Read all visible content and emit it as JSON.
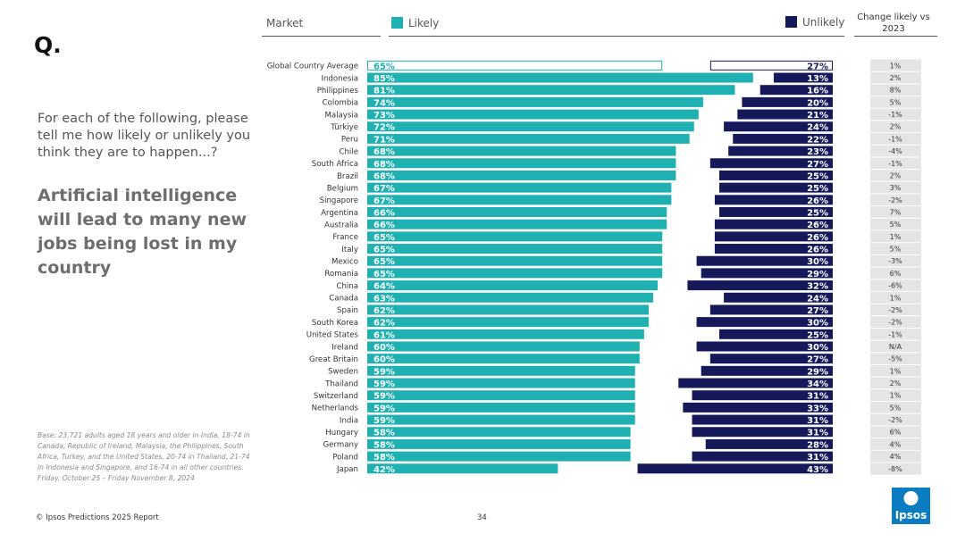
{
  "slide": {
    "q_mark": "Q.",
    "question": "For each of the following, please tell me how likely or unlikely you think they are to happen...?",
    "headline": "Artificial intelligence will lead to many new jobs being lost in my country",
    "base_note": "Base: 23,721 adults aged 18 years and older in India, 18-74 in Canada, Republic of Ireland, Malaysia, the Philippines, South Africa, Turkey, and the United States, 20-74 in Thailand, 21-74 in Indonesia and Singapore, and 16-74 in all other countries. Friday, October 25 – Friday November 8, 2024",
    "footer": "© Ipsos Predictions 2025 Report",
    "page_number": "34",
    "logo_text": "Ipsos"
  },
  "headers": {
    "market": "Market",
    "likely": "Likely",
    "unlikely": "Unlikely",
    "change": "Change likely vs 2023"
  },
  "colors": {
    "likely": "#1fb1b1",
    "unlikely": "#15195a",
    "change_bg": "#e5e5e5",
    "logo": "#0b7cc1"
  },
  "chart_data": {
    "type": "bar",
    "title": "Artificial intelligence will lead to many new jobs being lost in my country",
    "categories": [
      "Global Country Average",
      "Indonesia",
      "Philippines",
      "Colombia",
      "Malaysia",
      "Türkiye",
      "Peru",
      "Chile",
      "South Africa",
      "Brazil",
      "Belgium",
      "Singapore",
      "Argentina",
      "Australia",
      "France",
      "Italy",
      "Mexico",
      "Romania",
      "China",
      "Canada",
      "Spain",
      "South Korea",
      "United States",
      "Ireland",
      "Great Britain",
      "Sweden",
      "Thailand",
      "Switzerland",
      "Netherlands",
      "India",
      "Hungary",
      "Germany",
      "Poland",
      "Japan"
    ],
    "series": [
      {
        "name": "Likely",
        "values": [
          65,
          85,
          81,
          74,
          73,
          72,
          71,
          68,
          68,
          68,
          67,
          67,
          66,
          66,
          65,
          65,
          65,
          65,
          64,
          63,
          62,
          62,
          61,
          60,
          60,
          59,
          59,
          59,
          59,
          59,
          58,
          58,
          58,
          42
        ]
      },
      {
        "name": "Unlikely",
        "values": [
          27,
          13,
          16,
          20,
          21,
          24,
          22,
          23,
          27,
          25,
          25,
          26,
          25,
          26,
          26,
          26,
          30,
          29,
          32,
          24,
          27,
          30,
          25,
          30,
          27,
          29,
          34,
          31,
          33,
          31,
          31,
          28,
          31,
          43
        ]
      }
    ],
    "value_labels": {
      "likely": [
        "65%",
        "85%",
        "81%",
        "74%",
        "73%",
        "72%",
        "71%",
        "68%",
        "68%",
        "68%",
        "67%",
        "67%",
        "66%",
        "66%",
        "65%",
        "65%",
        "65%",
        "65%",
        "64%",
        "63%",
        "62%",
        "62%",
        "61%",
        "60%",
        "60%",
        "59%",
        "59%",
        "59%",
        "59%",
        "59%",
        "58%",
        "58%",
        "58%",
        "42%"
      ],
      "unlikely": [
        "27%",
        "13%",
        "16%",
        "20%",
        "21%",
        "24%",
        "22%",
        "23%",
        "27%",
        "25%",
        "25%",
        "26%",
        "25%",
        "26%",
        "26%",
        "26%",
        "30%",
        "29%",
        "32%",
        "24%",
        "27%",
        "30%",
        "25%",
        "30%",
        "27%",
        "29%",
        "34%",
        "31%",
        "33%",
        "31%",
        "31%",
        "28%",
        "31%",
        "43%"
      ]
    },
    "change_vs_2023": [
      "1%",
      "2%",
      "8%",
      "5%",
      "-1%",
      "2%",
      "-1%",
      "-4%",
      "-1%",
      "2%",
      "3%",
      "-2%",
      "7%",
      "5%",
      "1%",
      "5%",
      "-3%",
      "6%",
      "-6%",
      "1%",
      "-2%",
      "-2%",
      "-1%",
      "N/A",
      "-5%",
      "1%",
      "2%",
      "1%",
      "5%",
      "-2%",
      "6%",
      "4%",
      "4%",
      "-8%"
    ],
    "xlabel": "",
    "ylabel": "",
    "xlim": [
      0,
      100
    ],
    "orientation": "horizontal",
    "legend": "top"
  }
}
